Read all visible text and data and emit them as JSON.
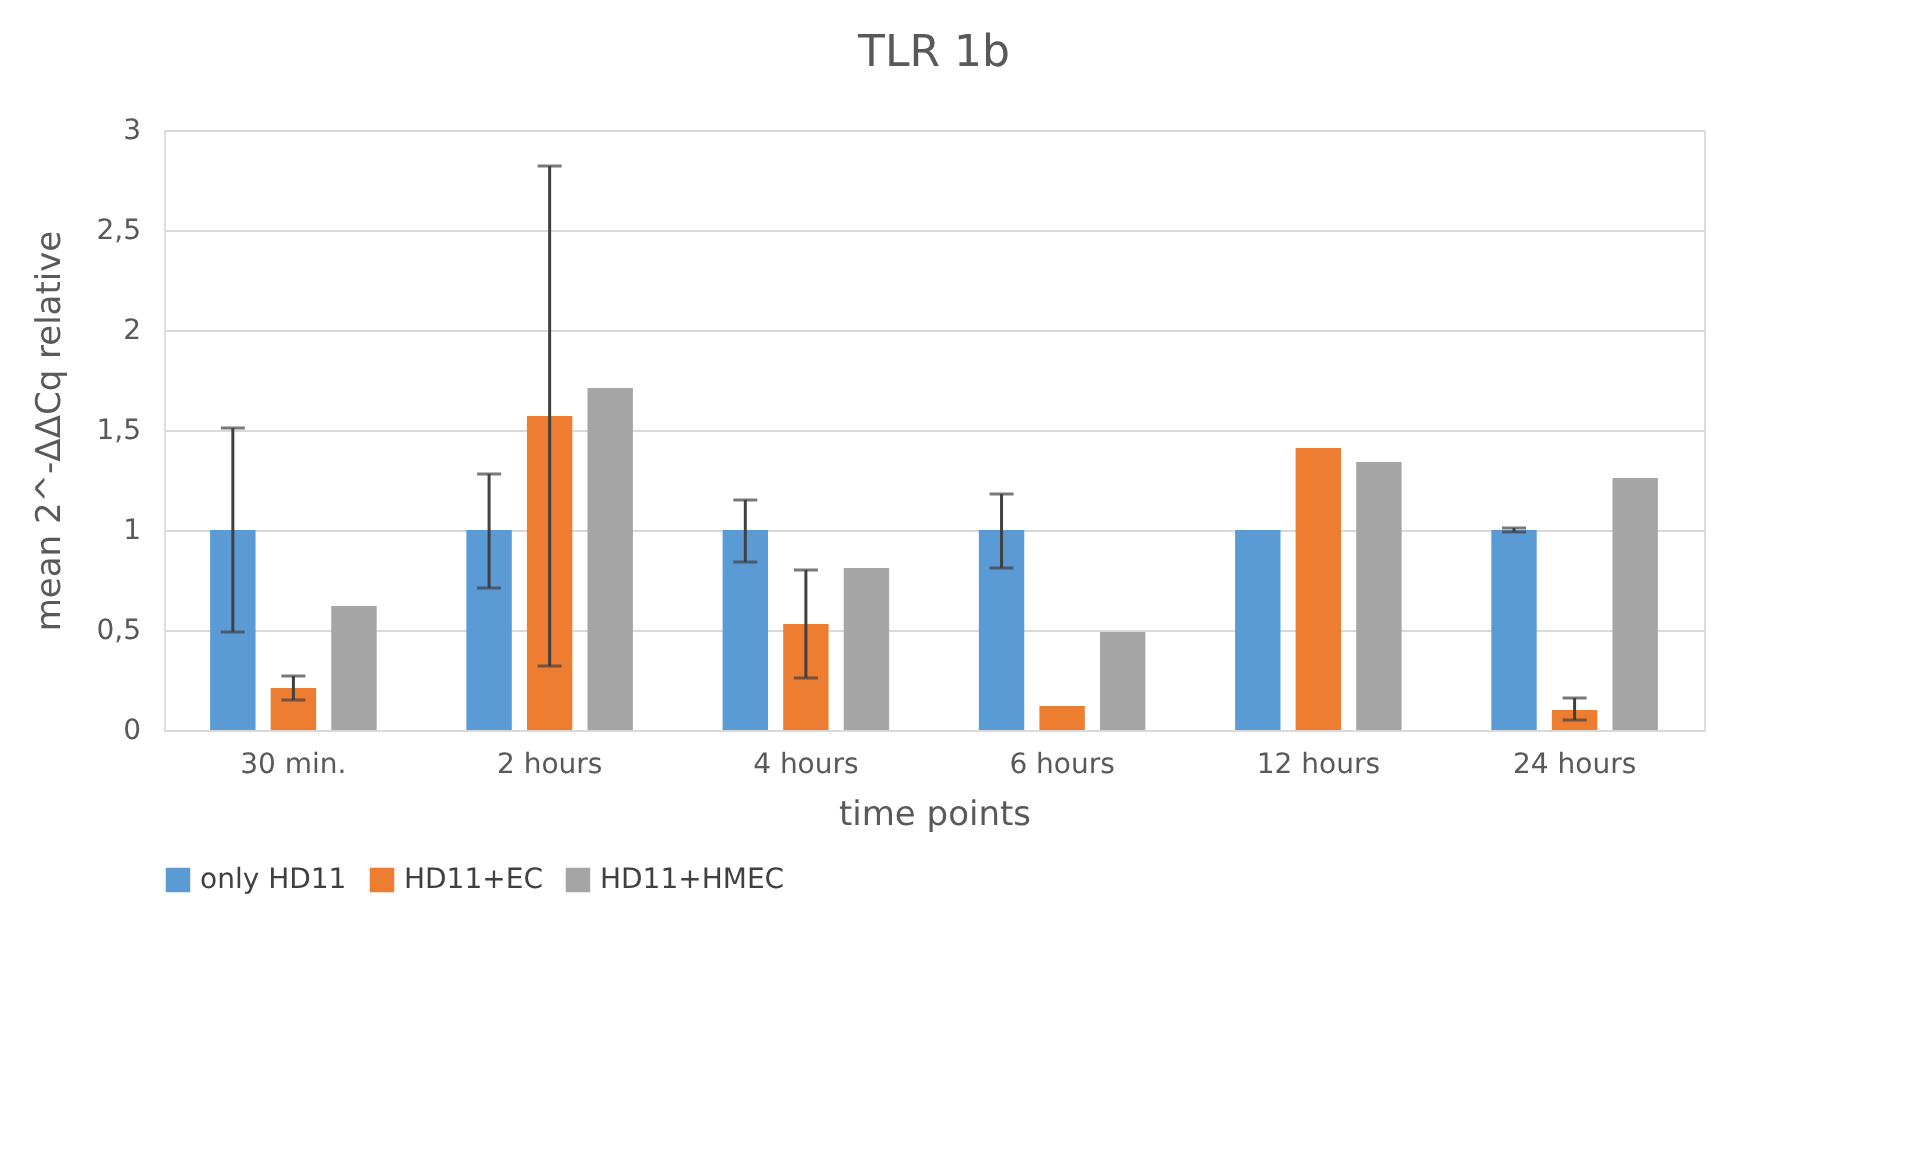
{
  "chart_data": {
    "type": "bar",
    "title": "TLR 1b",
    "xlabel": "time points",
    "ylabel": "mean 2^-ΔΔCq relative",
    "categories": [
      "30 min.",
      "2 hours",
      "4 hours",
      "6 hours",
      "12 hours",
      "24 hours"
    ],
    "series": [
      {
        "name": "only HD11",
        "color": "#5b9bd5",
        "values": [
          1,
          1,
          1,
          1,
          1,
          1
        ],
        "errors": [
          [
            0.49,
            1.51
          ],
          [
            0.71,
            1.28
          ],
          [
            0.84,
            1.15
          ],
          [
            0.81,
            1.18
          ],
          null,
          [
            0.99,
            1.01
          ]
        ]
      },
      {
        "name": "HD11+EC",
        "color": "#ed7d31",
        "values": [
          0.21,
          1.57,
          0.53,
          0.12,
          1.41,
          0.1
        ],
        "errors": [
          [
            0.15,
            0.27
          ],
          [
            0.32,
            2.82
          ],
          [
            0.26,
            0.8
          ],
          null,
          null,
          [
            0.05,
            0.16
          ]
        ]
      },
      {
        "name": "HD11+HMEC",
        "color": "#a5a5a5",
        "values": [
          0.62,
          1.71,
          0.81,
          0.49,
          1.34,
          1.26
        ]
      }
    ],
    "ylim": [
      0,
      3
    ],
    "yticks": [
      0,
      {
        "value": 0.5,
        "label": "0,5"
      },
      1,
      {
        "value": 1.5,
        "label": "1,5"
      },
      2,
      {
        "value": 2.5,
        "label": "2,5"
      },
      3
    ],
    "grid": "y",
    "legend": "bottom"
  }
}
